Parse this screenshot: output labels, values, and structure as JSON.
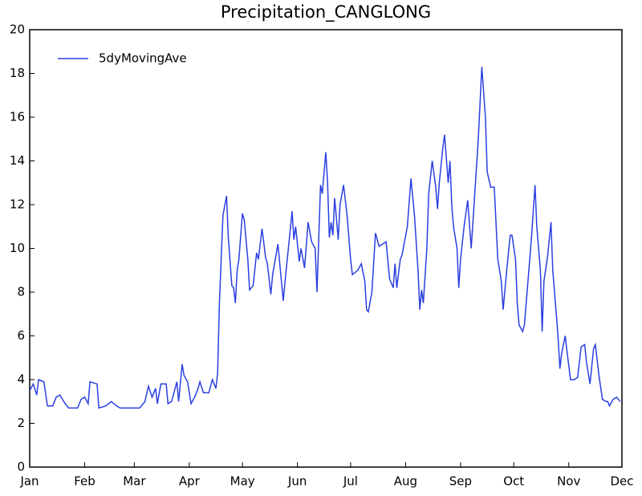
{
  "chart_data": {
    "type": "line",
    "title": "Precipitation_CANGLONG",
    "xlim": [
      0,
      334
    ],
    "ylim": [
      0,
      20
    ],
    "xticks": [
      {
        "value": 0,
        "label": "Jan"
      },
      {
        "value": 31,
        "label": "Feb"
      },
      {
        "value": 59,
        "label": "Mar"
      },
      {
        "value": 90,
        "label": "Apr"
      },
      {
        "value": 120,
        "label": "May"
      },
      {
        "value": 151,
        "label": "Jun"
      },
      {
        "value": 181,
        "label": "Jul"
      },
      {
        "value": 212,
        "label": "Aug"
      },
      {
        "value": 243,
        "label": "Sep"
      },
      {
        "value": 273,
        "label": "Oct"
      },
      {
        "value": 304,
        "label": "Nov"
      },
      {
        "value": 334,
        "label": "Dec"
      }
    ],
    "yticks": [
      0,
      2,
      4,
      6,
      8,
      10,
      12,
      14,
      16,
      18,
      20
    ],
    "legend": "upper left",
    "x": [
      0,
      2,
      4,
      5,
      8,
      10,
      13,
      15,
      17,
      20,
      22,
      27,
      29,
      31,
      33,
      34,
      38,
      39,
      43,
      46,
      49,
      51,
      56,
      62,
      65,
      67,
      69,
      71,
      72,
      74,
      77,
      78,
      80,
      83,
      84,
      86,
      87,
      89,
      91,
      93,
      95,
      96,
      98,
      101,
      103,
      105,
      106,
      107,
      109,
      111,
      112,
      114,
      115,
      116,
      117,
      118,
      120,
      121,
      123,
      124,
      126,
      128,
      129,
      131,
      133,
      134,
      136,
      137,
      140,
      143,
      144,
      148,
      149,
      150,
      152,
      153,
      155,
      157,
      159,
      161,
      162,
      164,
      165,
      167,
      168,
      169,
      170,
      171,
      172,
      174,
      175,
      177,
      179,
      181,
      182,
      185,
      187,
      189,
      190,
      191,
      193,
      195,
      197,
      199,
      201,
      203,
      205,
      206,
      207,
      209,
      210,
      213,
      215,
      217,
      219,
      220,
      221,
      222,
      224,
      225,
      227,
      229,
      230,
      231,
      233,
      234,
      236,
      237,
      238,
      239,
      241,
      242,
      243,
      245,
      247,
      249,
      251,
      253,
      255,
      257,
      258,
      260,
      262,
      264,
      266,
      267,
      269,
      271,
      272,
      274,
      275,
      276,
      278,
      279,
      281,
      283,
      285,
      286,
      288,
      289,
      290,
      292,
      294,
      295,
      297,
      298,
      299,
      300,
      302,
      303,
      305,
      307,
      309,
      311,
      313,
      314,
      316,
      318,
      319,
      321,
      323,
      325,
      326,
      327,
      329,
      331,
      333
    ],
    "series": [
      {
        "name": "5dyMovingAve",
        "color": "#2b3fe0",
        "values": [
          3.5,
          3.8,
          3.3,
          4.0,
          3.9,
          2.8,
          2.8,
          3.2,
          3.3,
          2.9,
          2.7,
          2.7,
          3.1,
          3.2,
          2.9,
          3.9,
          3.8,
          2.7,
          2.8,
          3.0,
          2.8,
          2.7,
          2.7,
          2.7,
          3.0,
          3.7,
          3.2,
          3.6,
          2.9,
          3.8,
          3.8,
          2.9,
          3.0,
          3.9,
          3.0,
          4.7,
          4.2,
          3.9,
          2.9,
          3.2,
          3.6,
          3.9,
          3.4,
          3.4,
          4.0,
          3.6,
          4.3,
          7.5,
          11.5,
          12.4,
          10.5,
          8.3,
          8.2,
          7.5,
          9.0,
          9.5,
          11.6,
          11.3,
          9.5,
          8.1,
          8.3,
          9.8,
          9.5,
          10.9,
          9.6,
          9.3,
          7.9,
          8.8,
          10.2,
          7.6,
          8.5,
          11.7,
          10.4,
          11.0,
          9.4,
          10.0,
          9.1,
          11.2,
          10.3,
          10.0,
          8.0,
          12.9,
          12.5,
          14.4,
          13.0,
          10.5,
          11.2,
          10.6,
          12.3,
          10.4,
          12.0,
          12.9,
          11.5,
          9.5,
          8.8,
          9.0,
          9.3,
          8.5,
          7.2,
          7.1,
          8.0,
          10.7,
          10.1,
          10.2,
          10.3,
          8.6,
          8.2,
          9.3,
          8.2,
          9.5,
          9.7,
          11.0,
          13.2,
          11.5,
          9.0,
          7.2,
          8.1,
          7.5,
          10.0,
          12.5,
          14.0,
          12.8,
          11.8,
          13.0,
          14.6,
          15.2,
          13.0,
          14.0,
          12.0,
          11.0,
          10.0,
          8.2,
          9.5,
          11.0,
          12.2,
          10.0,
          12.5,
          15.0,
          18.3,
          16.0,
          13.5,
          12.8,
          12.8,
          9.5,
          8.5,
          7.2,
          9.0,
          10.6,
          10.6,
          9.5,
          7.5,
          6.5,
          6.2,
          6.5,
          8.5,
          10.5,
          12.9,
          11.0,
          9.0,
          6.2,
          8.5,
          9.6,
          11.2,
          9.0,
          7.0,
          5.9,
          4.5,
          5.2,
          6.0,
          5.3,
          4.0,
          4.0,
          4.1,
          5.5,
          5.6,
          4.8,
          3.8,
          5.4,
          5.6,
          4.2,
          3.1,
          3.0,
          3.0,
          2.8,
          3.1,
          3.2,
          3.0
        ]
      }
    ]
  }
}
